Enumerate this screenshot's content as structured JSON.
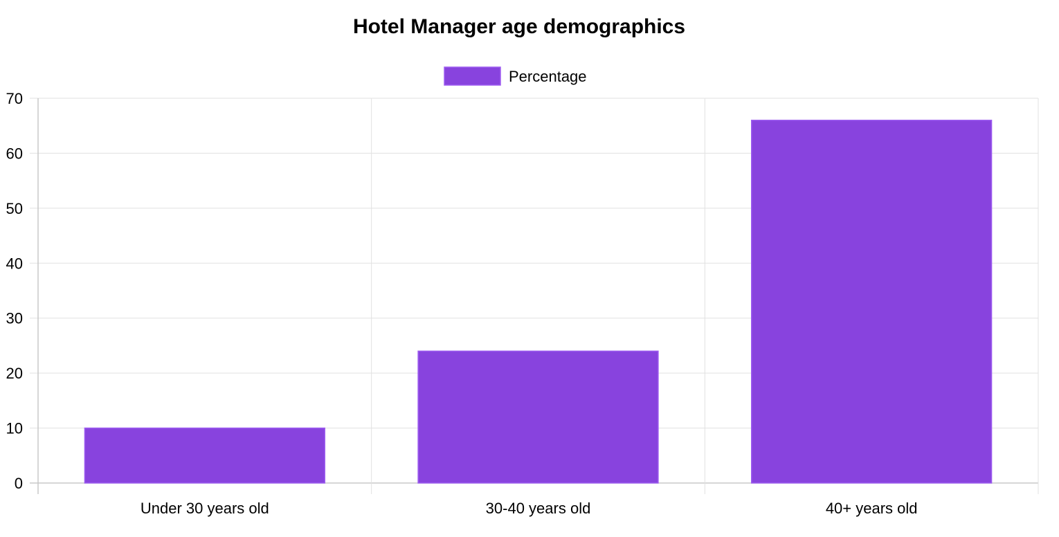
{
  "chart_data": {
    "type": "bar",
    "title": "Hotel Manager age demographics",
    "categories": [
      "Under 30 years old",
      "30-40 years old",
      "40+ years old"
    ],
    "series": [
      {
        "name": "Percentage",
        "values": [
          10,
          24,
          66
        ],
        "color": "#8843de"
      }
    ],
    "ylim": [
      0,
      70
    ],
    "yticks": [
      "0",
      "10",
      "20",
      "30",
      "40",
      "50",
      "60",
      "70"
    ],
    "grid": true,
    "legend_position": "top-center",
    "colors": {
      "bar_fill": "#8843de",
      "bar_border": "#9d5cf0",
      "grid": "#e1e1e1"
    }
  }
}
